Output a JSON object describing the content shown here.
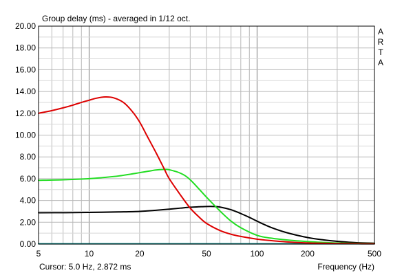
{
  "chart_data": {
    "type": "line",
    "title": "Group delay (ms) - averaged in 1/12 oct.",
    "xlabel": "Frequency (Hz)",
    "ylabel": "",
    "x_scale": "log",
    "xlim": [
      5,
      500
    ],
    "ylim": [
      0,
      20
    ],
    "grid": true,
    "legend": "none",
    "brand": "ARTA",
    "cursor_text": "Cursor: 5.0 Hz, 2.872 ms",
    "x_ticks": [
      {
        "value": 5,
        "label": "5"
      },
      {
        "value": 10,
        "label": "10"
      },
      {
        "value": 20,
        "label": "20"
      },
      {
        "value": 50,
        "label": "50"
      },
      {
        "value": 100,
        "label": "100"
      },
      {
        "value": 200,
        "label": "200"
      },
      {
        "value": 500,
        "label": "500"
      }
    ],
    "y_ticks": [
      {
        "value": 0,
        "label": "0.00"
      },
      {
        "value": 2,
        "label": "2.00"
      },
      {
        "value": 4,
        "label": "4.00"
      },
      {
        "value": 6,
        "label": "6.00"
      },
      {
        "value": 8,
        "label": "8.00"
      },
      {
        "value": 10,
        "label": "10.00"
      },
      {
        "value": 12,
        "label": "12.00"
      },
      {
        "value": 14,
        "label": "14.00"
      },
      {
        "value": 16,
        "label": "16.00"
      },
      {
        "value": 18,
        "label": "18.00"
      },
      {
        "value": 20,
        "label": "20.00"
      }
    ],
    "series": [
      {
        "color": "#dd0000",
        "x": [
          5,
          6,
          7,
          8,
          9,
          10,
          11,
          12.5,
          14,
          16,
          18,
          20,
          22,
          25,
          28,
          30,
          35,
          40,
          45,
          50,
          60,
          70,
          80,
          100,
          120,
          150,
          200,
          250,
          300,
          400,
          500
        ],
        "y": [
          12.0,
          12.25,
          12.5,
          12.75,
          13.0,
          13.2,
          13.38,
          13.5,
          13.42,
          13.0,
          12.2,
          11.2,
          10.0,
          8.4,
          6.9,
          6.0,
          4.5,
          3.3,
          2.5,
          1.9,
          1.25,
          0.9,
          0.7,
          0.45,
          0.32,
          0.2,
          0.1,
          0.07,
          0.05,
          0.03,
          0.02
        ]
      },
      {
        "color": "#22dd22",
        "x": [
          5,
          7,
          10,
          12,
          15,
          20,
          25,
          28,
          30,
          35,
          40,
          50,
          60,
          70,
          80,
          100,
          120,
          150,
          200,
          250,
          300,
          400,
          500
        ],
        "y": [
          5.85,
          5.9,
          6.0,
          6.1,
          6.25,
          6.55,
          6.8,
          6.85,
          6.82,
          6.5,
          5.9,
          4.3,
          3.05,
          2.1,
          1.5,
          0.8,
          0.55,
          0.38,
          0.23,
          0.15,
          0.1,
          0.06,
          0.05
        ]
      },
      {
        "color": "#000000",
        "x": [
          5,
          7,
          10,
          15,
          20,
          25,
          30,
          35,
          40,
          45,
          50,
          55,
          60,
          70,
          80,
          90,
          100,
          120,
          150,
          200,
          250,
          300,
          400,
          500
        ],
        "y": [
          2.87,
          2.88,
          2.9,
          2.95,
          3.0,
          3.1,
          3.2,
          3.3,
          3.38,
          3.42,
          3.45,
          3.45,
          3.4,
          3.15,
          2.8,
          2.45,
          2.1,
          1.55,
          1.05,
          0.6,
          0.38,
          0.25,
          0.12,
          0.08
        ]
      },
      {
        "color": "#008888",
        "x": [
          5,
          500
        ],
        "y": [
          0.02,
          0.02
        ]
      }
    ]
  }
}
